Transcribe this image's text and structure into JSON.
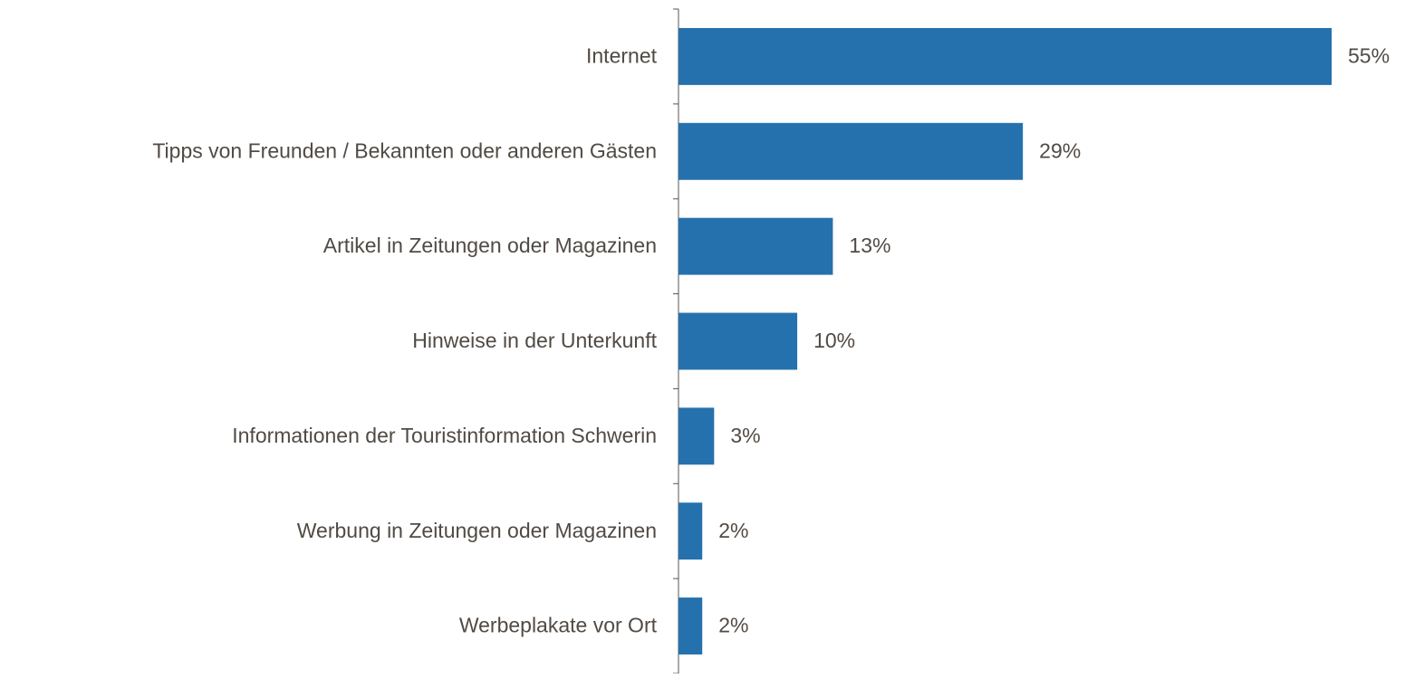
{
  "chart_data": {
    "type": "barh",
    "categories": [
      "Internet",
      "Tipps von Freunden / Bekannten oder anderen Gästen",
      "Artikel in Zeitungen oder Magazinen",
      "Hinweise in der Unterkunft",
      "Informationen der Touristinformation Schwerin",
      "Werbung in Zeitungen oder Magazinen",
      "Werbeplakate vor Ort"
    ],
    "values": [
      55,
      29,
      13,
      10,
      3,
      2,
      2
    ],
    "value_labels": [
      "55%",
      "29%",
      "13%",
      "10%",
      "3%",
      "2%",
      "2%"
    ],
    "color": "#2571ad"
  }
}
